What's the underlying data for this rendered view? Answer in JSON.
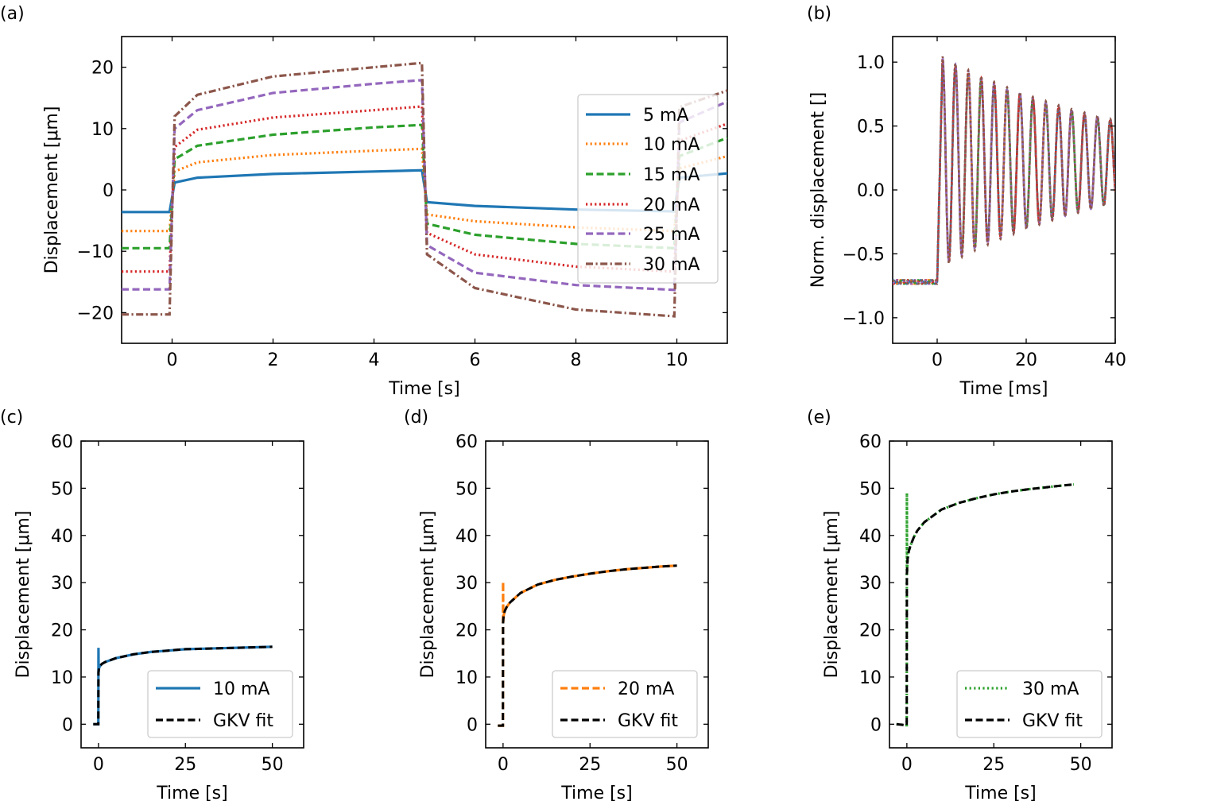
{
  "colors": {
    "5mA": "#1f77b4",
    "10mA": "#ff7f0e",
    "15mA": "#2ca02c",
    "20mA": "#d62728",
    "25mA": "#9467bd",
    "30mA": "#8c564b",
    "fit": "#000000"
  },
  "chart_data": [
    {
      "panel": "(a)",
      "type": "line",
      "xlabel": "Time [s]",
      "ylabel": "Displacement [μm]",
      "xlim": [
        -1,
        11
      ],
      "ylim": [
        -25,
        25
      ],
      "xticks": [
        0,
        2,
        4,
        6,
        8,
        10
      ],
      "yticks": [
        -20,
        -10,
        0,
        10,
        20
      ],
      "ytick_labels": [
        "−20",
        "−10",
        "0",
        "10",
        "20"
      ],
      "legend_position": "right",
      "series": [
        {
          "name": "5 mA",
          "style": "solid",
          "color": "#1f77b4",
          "x": [
            -1,
            -0.05,
            0.05,
            0.5,
            2,
            4,
            4.95,
            5.05,
            6,
            8,
            9.95,
            10.05,
            11
          ],
          "y": [
            -3.6,
            -3.6,
            1.2,
            2.0,
            2.6,
            3.0,
            3.2,
            -2.0,
            -2.6,
            -3.2,
            -3.5,
            2.0,
            2.7
          ]
        },
        {
          "name": "10 mA",
          "style": "dotted",
          "color": "#ff7f0e",
          "x": [
            -1,
            -0.05,
            0.05,
            0.5,
            2,
            4,
            4.95,
            5.05,
            6,
            8,
            9.95,
            10.05,
            11
          ],
          "y": [
            -6.7,
            -6.7,
            3.0,
            4.5,
            5.7,
            6.4,
            6.7,
            -4.0,
            -5.1,
            -6.1,
            -6.7,
            3.5,
            5.5
          ]
        },
        {
          "name": "15 mA",
          "style": "dashed",
          "color": "#2ca02c",
          "x": [
            -1,
            -0.05,
            0.05,
            0.5,
            2,
            4,
            4.95,
            5.05,
            6,
            8,
            9.95,
            10.05,
            11
          ],
          "y": [
            -9.5,
            -9.5,
            5.0,
            7.2,
            9.0,
            10.2,
            10.6,
            -5.5,
            -7.3,
            -8.8,
            -9.5,
            5.5,
            8.5
          ]
        },
        {
          "name": "20 mA",
          "style": "dotted",
          "color": "#d62728",
          "x": [
            -1,
            -0.05,
            0.05,
            0.5,
            2,
            4,
            4.95,
            5.05,
            6,
            8,
            9.95,
            10.05,
            11
          ],
          "y": [
            -13.3,
            -13.3,
            7.0,
            9.8,
            11.8,
            13.0,
            13.6,
            -7.0,
            -10.5,
            -12.5,
            -13.3,
            8.0,
            10.8
          ]
        },
        {
          "name": "25 mA",
          "style": "dashed",
          "color": "#9467bd",
          "x": [
            -1,
            -0.05,
            0.05,
            0.5,
            2,
            4,
            4.95,
            5.05,
            6,
            8,
            9.95,
            10.05,
            11
          ],
          "y": [
            -16.2,
            -16.2,
            10.0,
            13.0,
            15.8,
            17.3,
            17.9,
            -9.0,
            -13.5,
            -15.5,
            -16.3,
            11.0,
            14.4
          ]
        },
        {
          "name": "30 mA",
          "style": "dashdot",
          "color": "#8c564b",
          "x": [
            -1,
            -0.05,
            0.05,
            0.5,
            2,
            4,
            4.95,
            5.05,
            6,
            8,
            9.95,
            10.05,
            11
          ],
          "y": [
            -20.3,
            -20.3,
            12.0,
            15.5,
            18.5,
            20.0,
            20.7,
            -10.5,
            -16.0,
            -19.5,
            -20.6,
            13.5,
            16.2
          ]
        }
      ]
    },
    {
      "panel": "(b)",
      "type": "line",
      "xlabel": "Time [ms]",
      "ylabel": "Norm. displacement []",
      "xlim": [
        -10,
        40
      ],
      "ylim": [
        -1.2,
        1.2
      ],
      "xticks": [
        0,
        20,
        40
      ],
      "yticks": [
        -1.0,
        -0.5,
        0.0,
        0.5,
        1.0
      ],
      "ytick_labels": [
        "−1.0",
        "−0.5",
        "0.0",
        "0.5",
        "1.0"
      ],
      "response": {
        "baseline": -0.72,
        "step_time_ms": 0,
        "mean_level": 0.22,
        "initial_amplitude": 0.8,
        "period_ms": 2.9,
        "decay_ms": 42
      },
      "series": [
        {
          "name": "5 mA",
          "color": "#1f77b4"
        },
        {
          "name": "10 mA",
          "color": "#ff7f0e"
        },
        {
          "name": "15 mA",
          "color": "#2ca02c"
        },
        {
          "name": "20 mA",
          "color": "#d62728"
        },
        {
          "name": "25 mA",
          "color": "#9467bd"
        },
        {
          "name": "30 mA",
          "color": "#8c564b"
        }
      ]
    },
    {
      "panel": "(c)",
      "type": "line",
      "xlabel": "Time [s]",
      "ylabel": "Displacement [μm]",
      "xlim": [
        -5,
        59
      ],
      "ylim": [
        -5,
        60
      ],
      "xticks": [
        0,
        25,
        50
      ],
      "yticks": [
        0,
        10,
        20,
        30,
        40,
        50,
        60
      ],
      "legend_position": "bottom-right",
      "series": [
        {
          "name": "10 mA",
          "style": "solid",
          "color": "#1f77b4",
          "x": [
            -1.5,
            -0.05,
            0,
            0.05,
            0.1,
            0.2,
            0.5,
            1,
            2,
            5,
            10,
            15,
            20,
            25,
            30,
            35,
            40,
            45,
            50
          ],
          "y": [
            0,
            0,
            16.2,
            11.0,
            11.6,
            12.0,
            12.4,
            12.8,
            13.2,
            14.0,
            14.8,
            15.3,
            15.6,
            15.9,
            16.0,
            16.1,
            16.2,
            16.3,
            16.4
          ]
        },
        {
          "name": "GKV fit",
          "style": "dashed",
          "color": "#000000",
          "x": [
            -1.5,
            -0.05,
            0,
            0.1,
            0.2,
            0.5,
            1,
            2,
            5,
            10,
            15,
            20,
            25,
            30,
            35,
            40,
            45,
            50
          ],
          "y": [
            0,
            0,
            11.0,
            11.6,
            12.0,
            12.4,
            12.8,
            13.2,
            14.0,
            14.8,
            15.3,
            15.6,
            15.9,
            16.0,
            16.1,
            16.2,
            16.3,
            16.4
          ]
        }
      ]
    },
    {
      "panel": "(d)",
      "type": "line",
      "xlabel": "Time [s]",
      "ylabel": "Displacement [μm]",
      "xlim": [
        -5,
        59
      ],
      "ylim": [
        -5,
        60
      ],
      "xticks": [
        0,
        25,
        50
      ],
      "yticks": [
        0,
        10,
        20,
        30,
        40,
        50,
        60
      ],
      "legend_position": "bottom-right",
      "series": [
        {
          "name": "20 mA",
          "style": "dashed",
          "color": "#ff7f0e",
          "x": [
            -1.5,
            -0.05,
            0,
            0.05,
            0.1,
            0.2,
            0.5,
            1,
            2,
            5,
            10,
            15,
            20,
            25,
            30,
            35,
            40,
            45,
            50
          ],
          "y": [
            -0.3,
            -0.3,
            30.2,
            21.5,
            22.5,
            23.2,
            24.0,
            24.8,
            25.8,
            27.8,
            29.6,
            30.6,
            31.3,
            31.9,
            32.4,
            32.8,
            33.1,
            33.4,
            33.6
          ]
        },
        {
          "name": "GKV fit",
          "style": "dashed",
          "color": "#000000",
          "x": [
            -1.5,
            -0.05,
            0,
            0.1,
            0.2,
            0.5,
            1,
            2,
            5,
            10,
            15,
            20,
            25,
            30,
            35,
            40,
            45,
            50
          ],
          "y": [
            -0.3,
            -0.3,
            21.5,
            22.5,
            23.2,
            24.0,
            24.8,
            25.8,
            27.8,
            29.6,
            30.6,
            31.3,
            31.9,
            32.4,
            32.8,
            33.1,
            33.4,
            33.6
          ]
        }
      ]
    },
    {
      "panel": "(e)",
      "type": "line",
      "xlabel": "Time [s]",
      "ylabel": "Displacement [μm]",
      "xlim": [
        -5,
        59
      ],
      "ylim": [
        -5,
        60
      ],
      "xticks": [
        0,
        25,
        50
      ],
      "yticks": [
        0,
        10,
        20,
        30,
        40,
        50,
        60
      ],
      "legend_position": "bottom-right",
      "series": [
        {
          "name": "30 mA",
          "style": "dotted",
          "color": "#2ca02c",
          "x": [
            -3,
            -0.3,
            -0.05,
            0,
            0.05,
            0.2,
            0.5,
            1,
            2,
            3,
            5,
            10,
            15,
            20,
            25,
            30,
            35,
            40,
            45,
            48
          ],
          "y": [
            0,
            -0.2,
            -0.2,
            49.0,
            32.0,
            35.0,
            36.5,
            37.8,
            39.6,
            41.0,
            42.8,
            45.5,
            46.9,
            47.9,
            48.7,
            49.3,
            49.8,
            50.2,
            50.6,
            50.8
          ]
        },
        {
          "name": "GKV fit",
          "style": "dashed",
          "color": "#000000",
          "x": [
            -3,
            -0.3,
            -0.05,
            0,
            0.2,
            0.5,
            1,
            2,
            3,
            5,
            10,
            15,
            20,
            25,
            30,
            35,
            40,
            45,
            48
          ],
          "y": [
            0,
            -0.2,
            -0.2,
            32.0,
            35.0,
            36.5,
            37.8,
            39.6,
            41.0,
            42.8,
            45.5,
            46.9,
            47.9,
            48.7,
            49.3,
            49.8,
            50.2,
            50.6,
            50.8
          ]
        }
      ]
    }
  ]
}
